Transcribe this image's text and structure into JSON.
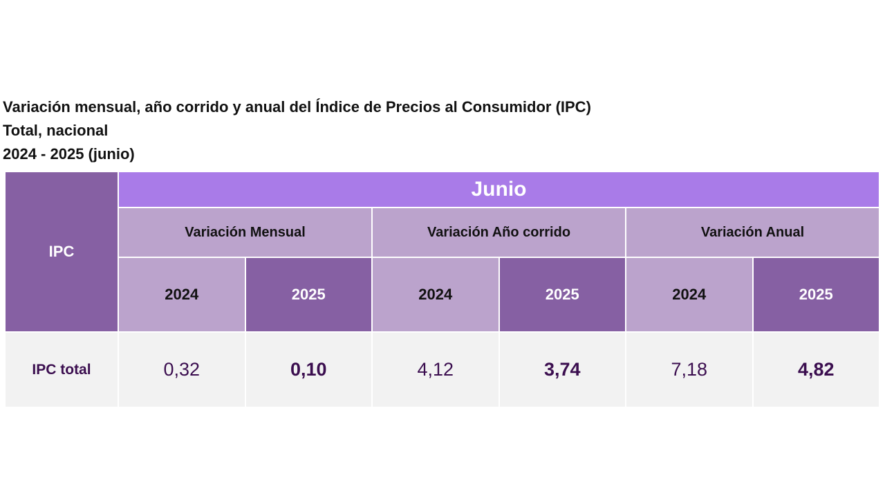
{
  "titles": {
    "line1": "Variación mensual, año corrido y anual del Índice de Precios al Consumidor (IPC)",
    "line2": "Total, nacional",
    "line3": "2024 - 2025 (junio)"
  },
  "table": {
    "row_header": "IPC",
    "month": "Junio",
    "groups": [
      "Variación Mensual",
      "Variación Año corrido",
      "Variación Anual"
    ],
    "years": [
      "2024",
      "2025",
      "2024",
      "2025",
      "2024",
      "2025"
    ],
    "rows": [
      {
        "label": "IPC total",
        "values": [
          "0,32",
          "0,10",
          "4,12",
          "3,74",
          "7,18",
          "4,82"
        ]
      }
    ]
  },
  "colors": {
    "month_header": "#a97be8",
    "dark": "#8660a3",
    "light": "#bba3cc",
    "body": "#f2f2f2",
    "value_text": "#3b0e4f"
  }
}
